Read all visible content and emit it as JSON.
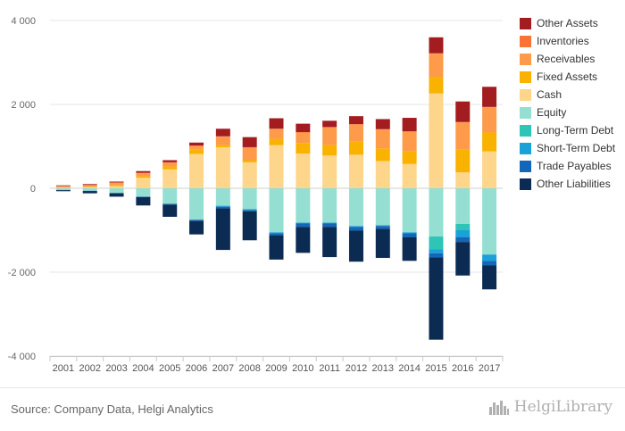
{
  "chart_data": {
    "type": "bar",
    "stacked": true,
    "categories": [
      "2001",
      "2002",
      "2003",
      "2004",
      "2005",
      "2006",
      "2007",
      "2008",
      "2009",
      "2010",
      "2011",
      "2012",
      "2013",
      "2014",
      "2015",
      "2016",
      "2017"
    ],
    "ylim": [
      -4000,
      4000
    ],
    "y_ticks": [
      4000,
      2000,
      0,
      -2000,
      -4000
    ],
    "y_tick_labels": [
      "4 000",
      "2 000",
      "0",
      "-2 000",
      "-4 000"
    ],
    "grid": true,
    "legend_position": "right",
    "positive_series": [
      {
        "name": "Cash",
        "color": "#fdd58b",
        "values": [
          15,
          25,
          50,
          250,
          450,
          820,
          980,
          620,
          1030,
          830,
          780,
          800,
          650,
          580,
          2260,
          380,
          880
        ]
      },
      {
        "name": "Fixed Assets",
        "color": "#f9b200",
        "values": [
          10,
          15,
          30,
          40,
          70,
          100,
          50,
          50,
          150,
          250,
          250,
          320,
          300,
          300,
          400,
          540,
          450
        ]
      },
      {
        "name": "Receivables",
        "color": "#fd9b4b",
        "values": [
          25,
          35,
          50,
          70,
          90,
          90,
          200,
          300,
          230,
          250,
          420,
          400,
          450,
          470,
          550,
          650,
          600
        ]
      },
      {
        "name": "Inventories",
        "color": "#fb7236",
        "values": [
          5,
          5,
          10,
          10,
          10,
          10,
          10,
          10,
          10,
          10,
          10,
          10,
          10,
          10,
          10,
          10,
          10
        ]
      },
      {
        "name": "Other Assets",
        "color": "#a31d20",
        "values": [
          15,
          20,
          20,
          40,
          50,
          70,
          180,
          240,
          250,
          200,
          150,
          190,
          240,
          320,
          380,
          490,
          480
        ]
      }
    ],
    "negative_series": [
      {
        "name": "Equity",
        "color": "#94dfd2",
        "values": [
          -40,
          -60,
          -110,
          -200,
          -370,
          -750,
          -410,
          -500,
          -1050,
          -820,
          -820,
          -900,
          -880,
          -1050,
          -1150,
          -850,
          -1580
        ]
      },
      {
        "name": "Long-Term Debt",
        "color": "#2ec4b6",
        "values": [
          0,
          0,
          0,
          0,
          0,
          0,
          -10,
          0,
          0,
          0,
          0,
          0,
          0,
          0,
          -300,
          -150,
          0
        ]
      },
      {
        "name": "Short-Term Debt",
        "color": "#1aa1d8",
        "values": [
          0,
          0,
          0,
          0,
          0,
          0,
          -20,
          -20,
          -20,
          -20,
          -20,
          -20,
          -20,
          -20,
          -100,
          -170,
          -150
        ]
      },
      {
        "name": "Trade Payables",
        "color": "#1466b8",
        "values": [
          -5,
          -5,
          -10,
          -10,
          -20,
          -30,
          -40,
          -30,
          -50,
          -80,
          -80,
          -90,
          -70,
          -100,
          -100,
          -110,
          -110
        ]
      },
      {
        "name": "Other Liabilities",
        "color": "#0c2b52",
        "values": [
          -25,
          -55,
          -80,
          -200,
          -290,
          -320,
          -990,
          -690,
          -580,
          -620,
          -720,
          -740,
          -690,
          -560,
          -1960,
          -800,
          -570
        ]
      }
    ]
  },
  "legend": {
    "items": [
      {
        "label": "Other Assets",
        "color": "#a31d20"
      },
      {
        "label": "Inventories",
        "color": "#fb7236"
      },
      {
        "label": "Receivables",
        "color": "#fd9b4b"
      },
      {
        "label": "Fixed Assets",
        "color": "#f9b200"
      },
      {
        "label": "Cash",
        "color": "#fdd58b"
      },
      {
        "label": "Equity",
        "color": "#94dfd2"
      },
      {
        "label": "Long-Term Debt",
        "color": "#2ec4b6"
      },
      {
        "label": "Short-Term Debt",
        "color": "#1aa1d8"
      },
      {
        "label": "Trade Payables",
        "color": "#1466b8"
      },
      {
        "label": "Other Liabilities",
        "color": "#0c2b52"
      }
    ]
  },
  "footer": {
    "source": "Source: Company Data, Helgi Analytics",
    "brand": "HelgiLibrary",
    "brand_icon": "skyline-logo-icon"
  }
}
